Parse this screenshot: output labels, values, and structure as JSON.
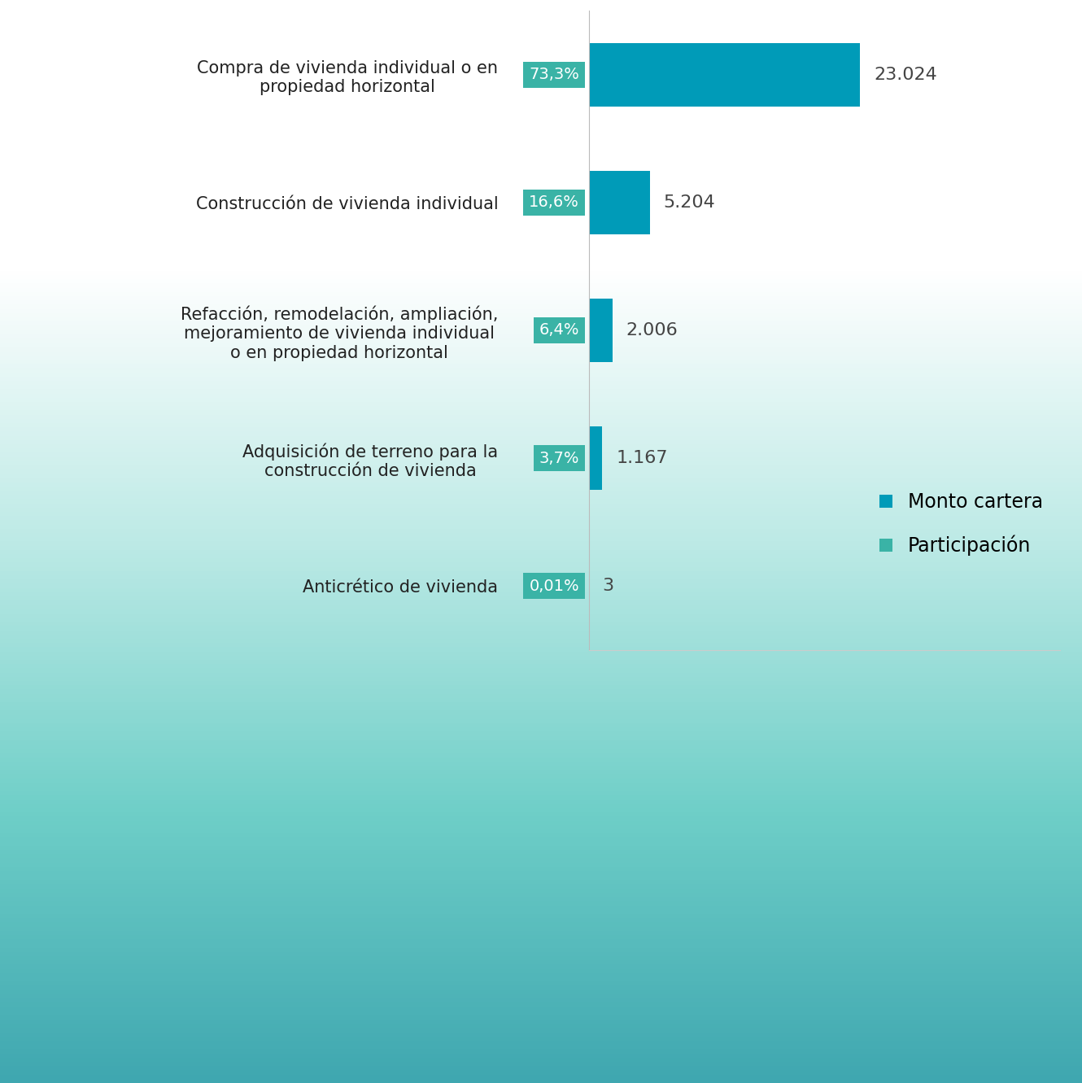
{
  "chart_data": {
    "type": "bar",
    "orientation": "horizontal",
    "categories": [
      "Compra de vivienda individual o en propiedad horizontal",
      "Construcción de vivienda individual",
      "Refacción, remodelación, ampliación, mejoramiento de vivienda individual o en propiedad horizontal",
      "Adquisición de terreno para la construcción de vivienda",
      "Anticrético de vivienda"
    ],
    "series": [
      {
        "name": "Monto cartera",
        "color": "#009BB8",
        "values": [
          23024,
          5204,
          2006,
          1167,
          3
        ],
        "value_labels": [
          "23.024",
          "5.204",
          "2.006",
          "1.167",
          "3"
        ]
      },
      {
        "name": "Participación",
        "color": "#3AB3A6",
        "values": [
          73.3,
          16.6,
          6.4,
          3.7,
          0.01
        ],
        "value_labels": [
          "73,3%",
          "16,6%",
          "6,4%",
          "3,7%",
          "0,01%"
        ]
      }
    ],
    "xlim": [
      0,
      40000
    ],
    "xticks": [],
    "tick_labels": "y",
    "data_labels": true,
    "grid": false,
    "legend": "lower right"
  }
}
